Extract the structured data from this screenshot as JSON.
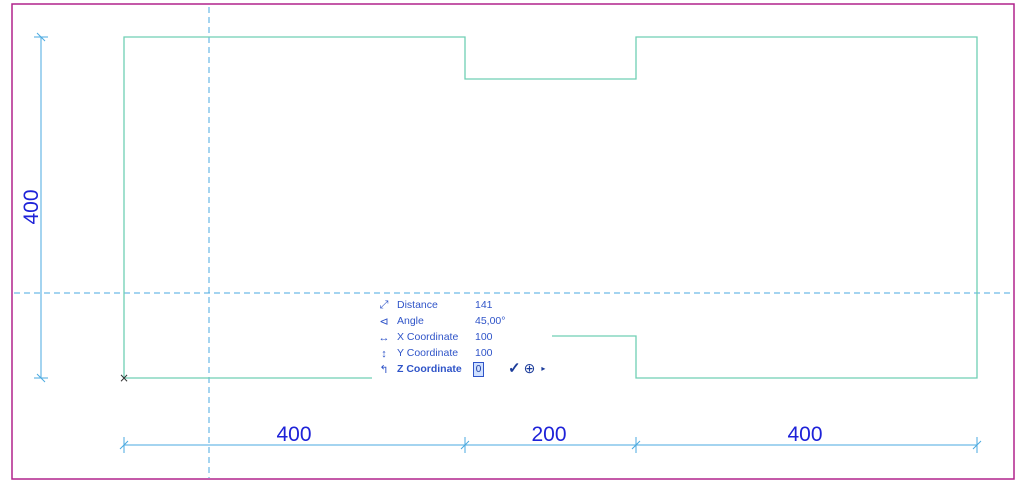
{
  "drawing": {
    "colors": {
      "frame": "#b0228c",
      "wall": "#6fcfb4",
      "guide": "#4aaae0",
      "dimension_line": "#4aaae0",
      "dimension_text": "#1e22d8",
      "tracker_text": "#2f54c8"
    },
    "dimensions": {
      "vertical_total": "400",
      "horizontal_left": "400",
      "horizontal_middle": "200",
      "horizontal_right": "400"
    },
    "start_point_marker": "×"
  },
  "tracker": {
    "rows": [
      {
        "icon": "distance-icon",
        "glyph": "⤢",
        "label": "Distance",
        "value": "141",
        "bold": false
      },
      {
        "icon": "angle-icon",
        "glyph": "⊲",
        "label": "Angle",
        "value": "45,00°",
        "bold": false
      },
      {
        "icon": "x-coordinate-icon",
        "glyph": "↔",
        "label": "X Coordinate",
        "value": "100",
        "bold": false
      },
      {
        "icon": "y-coordinate-icon",
        "glyph": "↕",
        "label": "Y Coordinate",
        "value": "100",
        "bold": false
      },
      {
        "icon": "z-coordinate-icon",
        "glyph": "↰",
        "label": "Z Coordinate",
        "value": "0",
        "bold": true
      }
    ],
    "actions": {
      "confirm_icon": "✓",
      "reference_icon": "⊕",
      "more_icon": "▸"
    }
  }
}
